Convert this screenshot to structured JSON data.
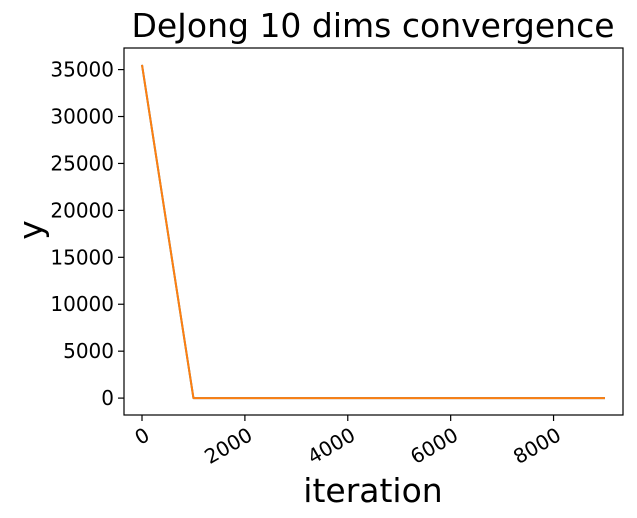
{
  "chart_data": {
    "type": "line",
    "title": "DeJong 10 dims convergence",
    "xlabel": "iteration",
    "ylabel": "y",
    "xlim": [
      -350,
      9350
    ],
    "ylim": [
      -1800,
      37300
    ],
    "xticks": [
      0,
      2000,
      4000,
      6000,
      8000
    ],
    "xtick_labels": [
      "0",
      "2000",
      "4000",
      "6000",
      "8000"
    ],
    "yticks": [
      0,
      5000,
      10000,
      15000,
      20000,
      25000,
      30000,
      35000
    ],
    "ytick_labels": [
      "0",
      "5000",
      "10000",
      "15000",
      "20000",
      "25000",
      "30000",
      "35000"
    ],
    "grid": false,
    "legend": "none",
    "series": [
      {
        "color": "#1f77b4",
        "x": [
          0,
          1000,
          2000,
          3000,
          4000,
          5000,
          6000,
          7000,
          8000,
          9000
        ],
        "y": [
          35500,
          0,
          0,
          0,
          0,
          0,
          0,
          0,
          0,
          0
        ]
      },
      {
        "color": "#ff7f0e",
        "x": [
          0,
          1000,
          2000,
          3000,
          4000,
          5000,
          6000,
          7000,
          8000,
          9000
        ],
        "y": [
          35500,
          0,
          0,
          0,
          0,
          0,
          0,
          0,
          0,
          0
        ]
      }
    ]
  }
}
